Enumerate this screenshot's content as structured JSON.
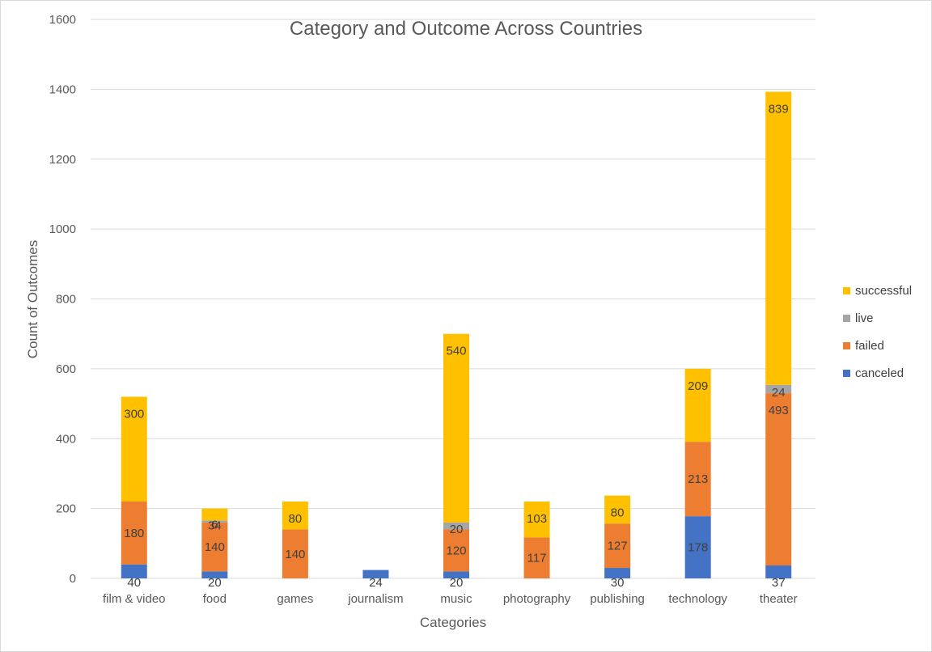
{
  "chart_data": {
    "type": "bar",
    "stacked": true,
    "title": "Category and Outcome Across Countries",
    "xlabel": "Categories",
    "ylabel": "Count of Outcomes",
    "ylim": [
      0,
      1600
    ],
    "yticks": [
      0,
      200,
      400,
      600,
      800,
      1000,
      1200,
      1400,
      1600
    ],
    "grid": true,
    "legend_position": "right",
    "categories": [
      "film & video",
      "food",
      "games",
      "journalism",
      "music",
      "photography",
      "publishing",
      "technology",
      "theater"
    ],
    "series": [
      {
        "name": "canceled",
        "color": "#4472C4",
        "values": [
          40,
          20,
          null,
          24,
          20,
          null,
          30,
          178,
          37
        ]
      },
      {
        "name": "failed",
        "color": "#ED7D31",
        "values": [
          180,
          140,
          140,
          null,
          120,
          117,
          127,
          213,
          493
        ]
      },
      {
        "name": "live",
        "color": "#A5A5A5",
        "values": [
          null,
          6,
          null,
          null,
          20,
          null,
          null,
          null,
          24
        ]
      },
      {
        "name": "successful",
        "color": "#FFC000",
        "values": [
          300,
          34,
          80,
          null,
          540,
          103,
          80,
          209,
          839
        ]
      }
    ]
  }
}
